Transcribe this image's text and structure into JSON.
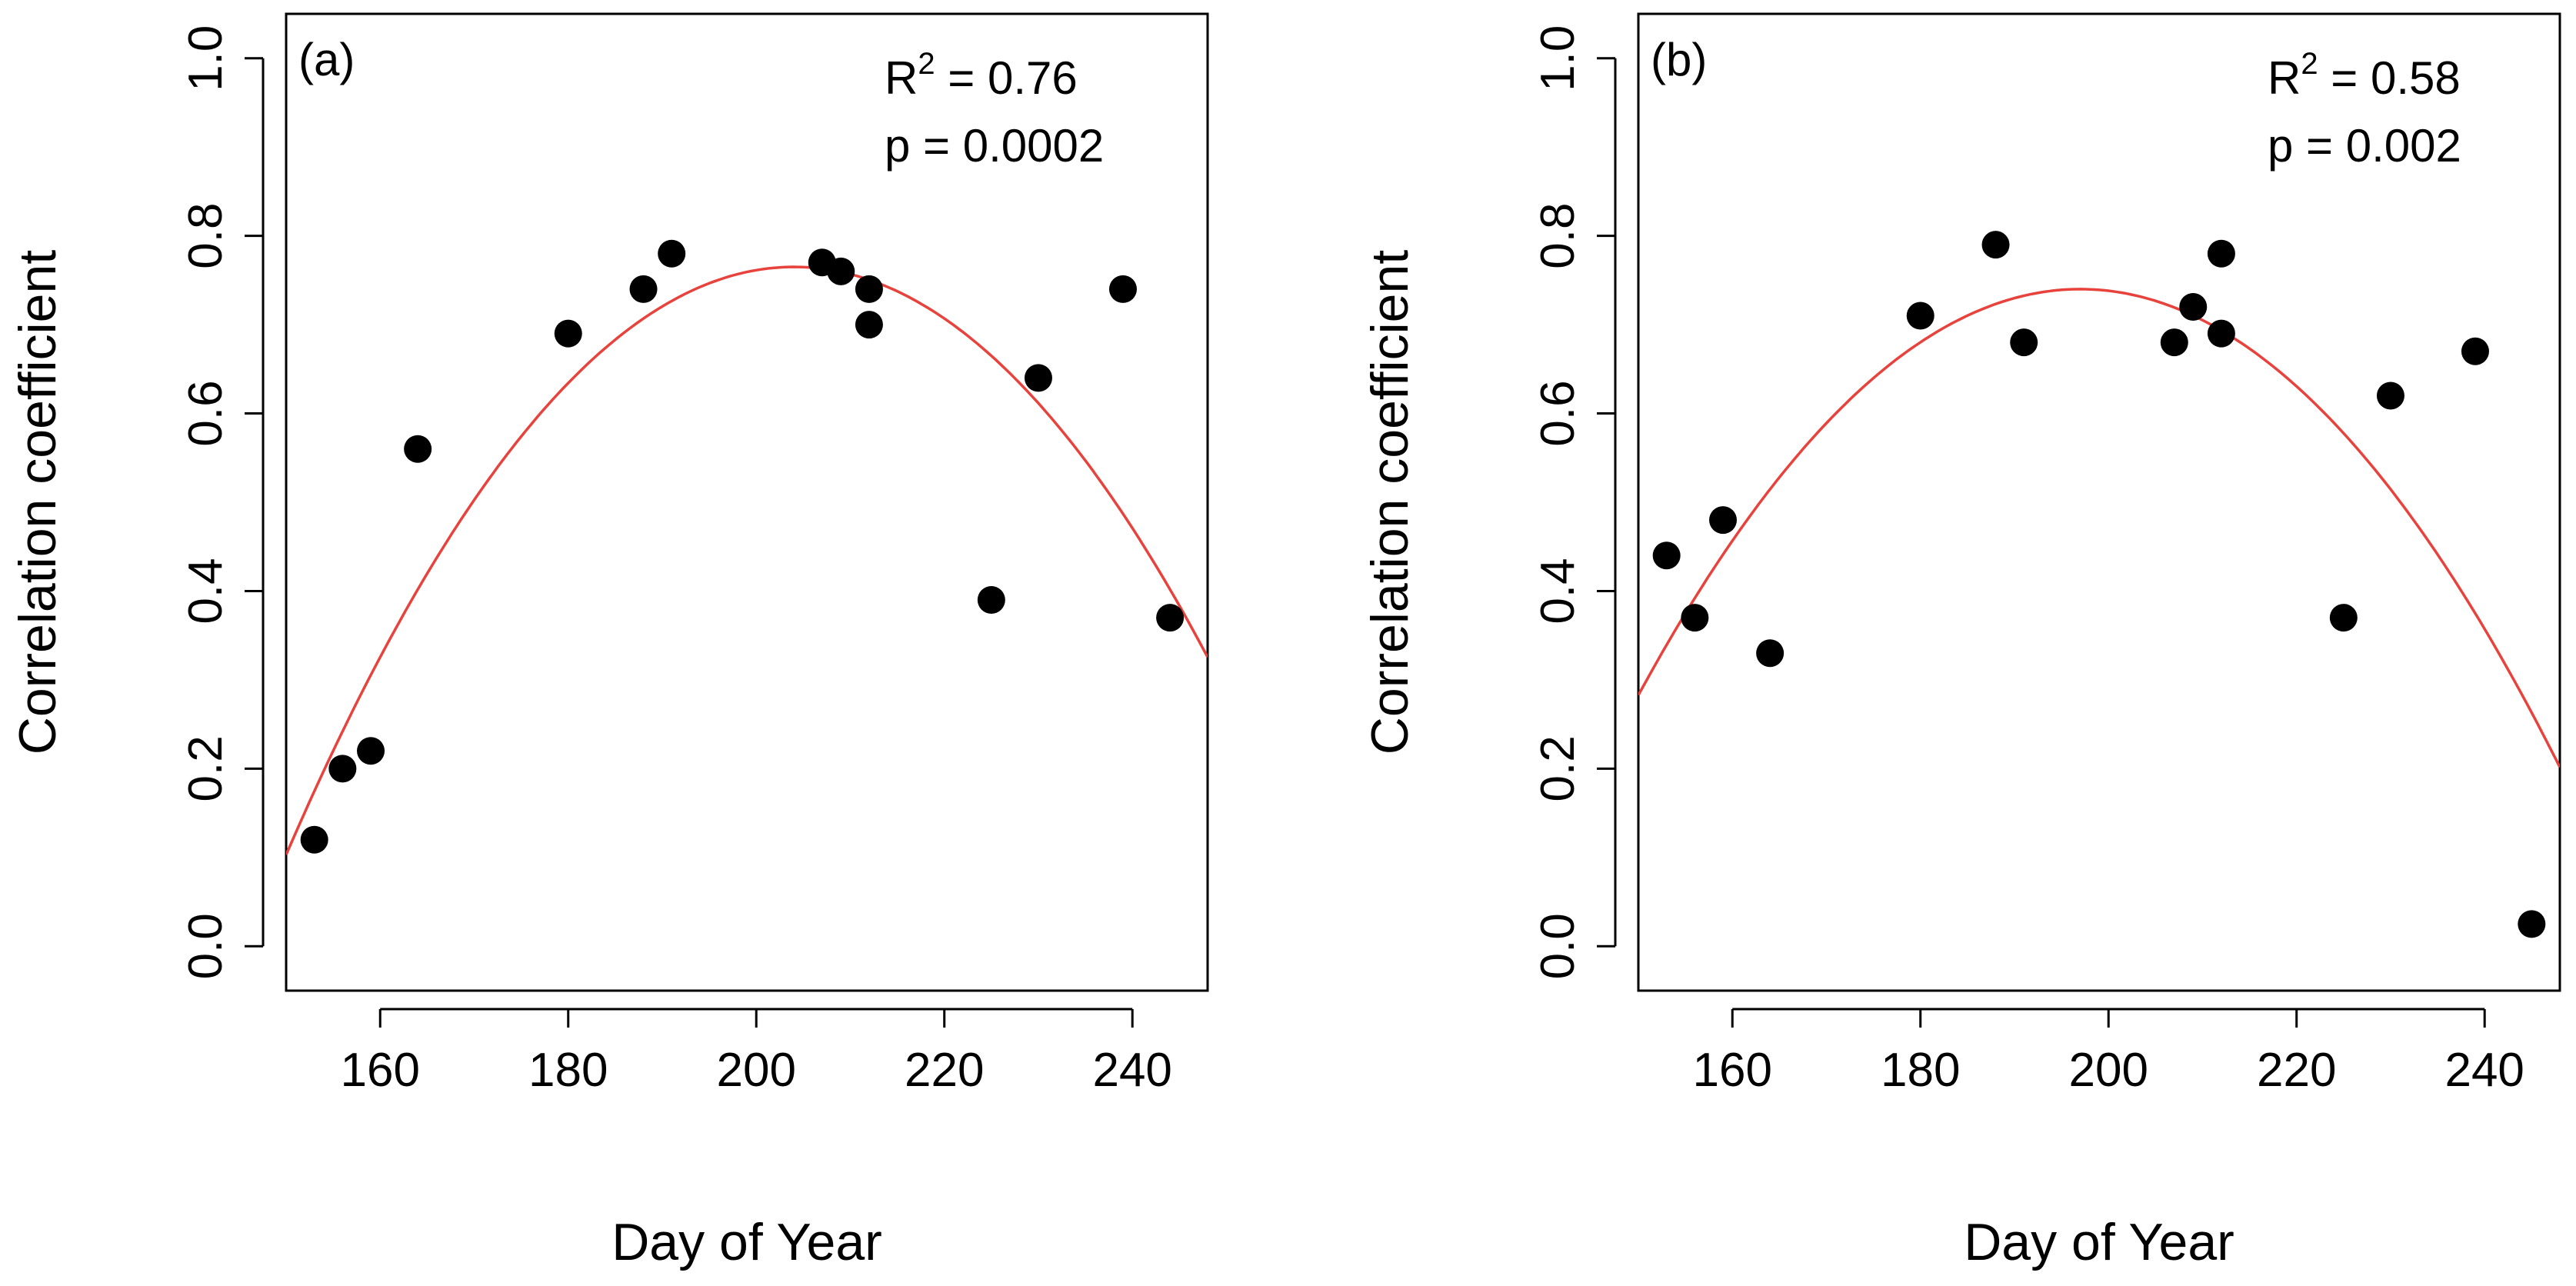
{
  "chart_data": [
    {
      "type": "scatter",
      "panel_label": "(a)",
      "xlabel": "Day of Year",
      "ylabel": "Correlation coefficient",
      "xlim": [
        150,
        248
      ],
      "ylim": [
        -0.05,
        1.05
      ],
      "xticks": [
        160,
        180,
        200,
        220,
        240
      ],
      "yticks": [
        0.0,
        0.2,
        0.4,
        0.6,
        0.8,
        1.0
      ],
      "xtick_labels": [
        "160",
        "180",
        "200",
        "220",
        "240"
      ],
      "ytick_labels": [
        "0.0",
        "0.2",
        "0.4",
        "0.6",
        "0.8",
        "1.0"
      ],
      "points": [
        {
          "x": 153,
          "y": 0.12
        },
        {
          "x": 156,
          "y": 0.2
        },
        {
          "x": 159,
          "y": 0.22
        },
        {
          "x": 164,
          "y": 0.56
        },
        {
          "x": 180,
          "y": 0.69
        },
        {
          "x": 188,
          "y": 0.74
        },
        {
          "x": 191,
          "y": 0.78
        },
        {
          "x": 207,
          "y": 0.77
        },
        {
          "x": 209,
          "y": 0.76
        },
        {
          "x": 212,
          "y": 0.74
        },
        {
          "x": 212,
          "y": 0.7
        },
        {
          "x": 225,
          "y": 0.39
        },
        {
          "x": 230,
          "y": 0.64
        },
        {
          "x": 239,
          "y": 0.74
        },
        {
          "x": 244,
          "y": 0.37
        }
      ],
      "fit": {
        "type": "quadratic",
        "vertex_x": 204,
        "vertex_y": 0.765,
        "a": -0.000227,
        "color": "#e8423c"
      },
      "annotations": {
        "r2_prefix": "R",
        "r2_sup": "2",
        "r2_value": " = 0.76",
        "p_text": "p = 0.0002"
      },
      "point_color": "#000000"
    },
    {
      "type": "scatter",
      "panel_label": "(b)",
      "xlabel": "Day of Year",
      "ylabel": "Correlation coefficient",
      "xlim": [
        150,
        248
      ],
      "ylim": [
        -0.05,
        1.05
      ],
      "xticks": [
        160,
        180,
        200,
        220,
        240
      ],
      "yticks": [
        0.0,
        0.2,
        0.4,
        0.6,
        0.8,
        1.0
      ],
      "xtick_labels": [
        "160",
        "180",
        "200",
        "220",
        "240"
      ],
      "ytick_labels": [
        "0.0",
        "0.2",
        "0.4",
        "0.6",
        "0.8",
        "1.0"
      ],
      "points": [
        {
          "x": 153,
          "y": 0.44
        },
        {
          "x": 156,
          "y": 0.37
        },
        {
          "x": 159,
          "y": 0.48
        },
        {
          "x": 164,
          "y": 0.33
        },
        {
          "x": 180,
          "y": 0.71
        },
        {
          "x": 188,
          "y": 0.79
        },
        {
          "x": 191,
          "y": 0.68
        },
        {
          "x": 207,
          "y": 0.68
        },
        {
          "x": 209,
          "y": 0.72
        },
        {
          "x": 212,
          "y": 0.78
        },
        {
          "x": 212,
          "y": 0.69
        },
        {
          "x": 225,
          "y": 0.37
        },
        {
          "x": 230,
          "y": 0.62
        },
        {
          "x": 239,
          "y": 0.67
        },
        {
          "x": 245,
          "y": 0.025
        }
      ],
      "fit": {
        "type": "quadratic",
        "vertex_x": 197,
        "vertex_y": 0.74,
        "a": -0.000207,
        "color": "#e8423c"
      },
      "annotations": {
        "r2_prefix": "R",
        "r2_sup": "2",
        "r2_value": " = 0.58",
        "p_text": "p = 0.002"
      },
      "point_color": "#000000"
    }
  ]
}
